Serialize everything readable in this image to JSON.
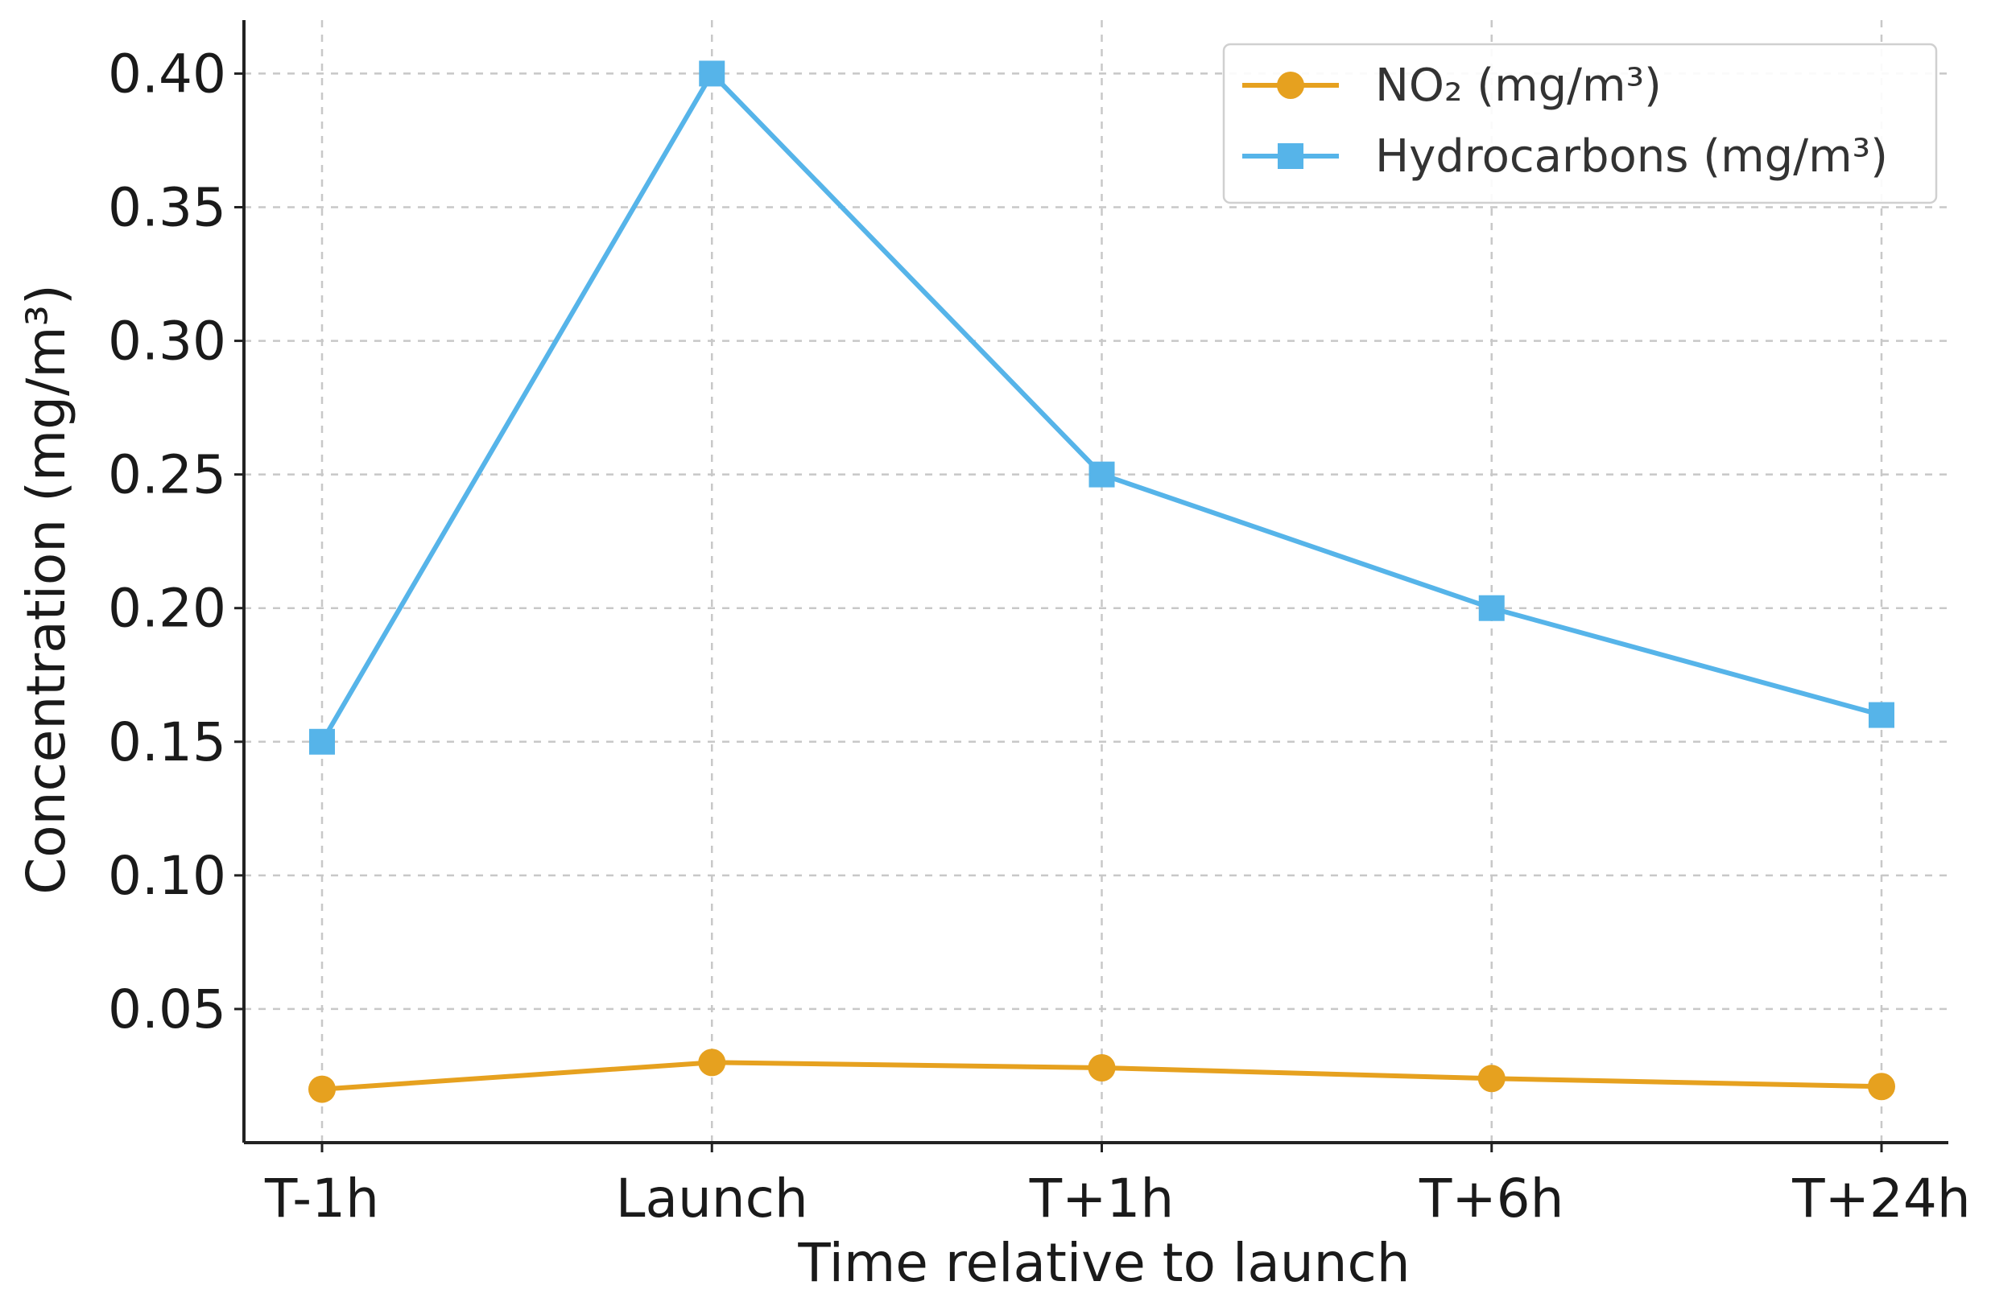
{
  "chart_data": {
    "type": "line",
    "title": "",
    "xlabel": "Time relative to launch",
    "ylabel": "Concentration (mg/m³)",
    "categories": [
      "T-1h",
      "Launch",
      "T+1h",
      "T+6h",
      "T+24h"
    ],
    "ylim": [
      0.0,
      0.42
    ],
    "yticks": [
      0.05,
      0.1,
      0.15,
      0.2,
      0.25,
      0.3,
      0.35,
      0.4
    ],
    "ytick_labels": [
      "0.05",
      "0.10",
      "0.15",
      "0.20",
      "0.25",
      "0.30",
      "0.35",
      "0.40"
    ],
    "grid": true,
    "legend_position": "top-right",
    "series": [
      {
        "name": "NO₂ (mg/m³)",
        "color": "#E6A11F",
        "marker": "circle",
        "values": [
          0.02,
          0.03,
          0.028,
          0.024,
          0.021
        ]
      },
      {
        "name": "Hydrocarbons (mg/m³)",
        "color": "#56B4E9",
        "marker": "square",
        "values": [
          0.15,
          0.4,
          0.25,
          0.2,
          0.16
        ]
      }
    ]
  }
}
